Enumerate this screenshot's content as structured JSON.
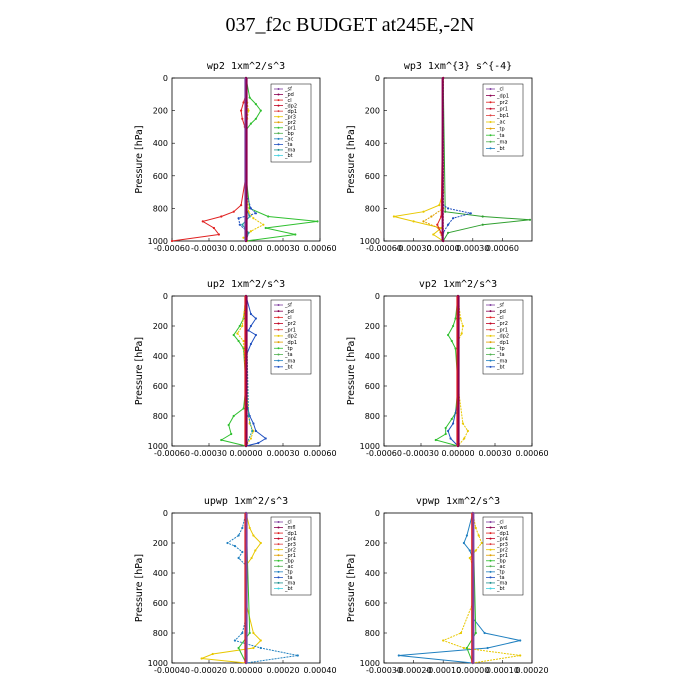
{
  "figure": {
    "title": "037_f2c  BUDGET at245E,-2N"
  },
  "chart_data": [
    {
      "type": "line",
      "title": "wp2   1xm^2/s^3",
      "ylabel": "Pressure  [hPa]",
      "ylim": [
        1000,
        0
      ],
      "yticks": [
        "0",
        "200",
        "400",
        "600",
        "800",
        "1000"
      ],
      "xlim": [
        -0.0006,
        0.0006
      ],
      "xticks": [
        "-0.00060",
        "-0.00030",
        "0.00000",
        "0.00030",
        "0.00060"
      ],
      "legend": [
        "_sf",
        "_pd",
        "_cl",
        "_dp2",
        "_dp1",
        "_pr3",
        "_pr2",
        "_pr1",
        "_bp",
        "_ac",
        "_ta",
        "_ma",
        "_bt"
      ],
      "series": [
        {
          "name": "_cl",
          "color": "#e02020",
          "p": [
            0,
            100,
            150,
            200,
            250,
            300,
            400,
            600,
            780,
            820,
            850,
            880,
            920,
            960,
            1000
          ],
          "x": [
            0,
            0,
            -2e-05,
            -4e-05,
            -3e-05,
            -1e-05,
            0,
            0,
            -4e-05,
            -0.0001,
            -0.0002,
            -0.00035,
            -0.00026,
            -0.00022,
            -0.0006
          ]
        },
        {
          "name": "_pr2",
          "color": "#e8c800",
          "p": [
            0,
            150,
            200,
            250,
            300,
            600,
            820,
            860,
            900,
            940,
            980,
            1000
          ],
          "x": [
            0,
            1e-05,
            2e-05,
            1e-05,
            0,
            0,
            2e-05,
            6e-05,
            0.00014,
            4e-05,
            -2e-05,
            1e-05
          ]
        },
        {
          "name": "_pr1",
          "color": "#30c030",
          "p": [
            0,
            120,
            160,
            200,
            250,
            280,
            320,
            600,
            800,
            850,
            880,
            920,
            960,
            1000
          ],
          "x": [
            0,
            3e-05,
            8e-05,
            0.00012,
            8e-05,
            4e-05,
            0,
            0,
            3e-05,
            0.00018,
            0.00058,
            0.00016,
            0.0004,
            0
          ]
        },
        {
          "name": "_bp",
          "color": "#2050c0",
          "p": [
            0,
            700,
            800,
            830,
            860,
            900,
            950,
            1000
          ],
          "x": [
            0,
            0,
            4e-05,
            8e-05,
            -6e-05,
            -5e-05,
            2e-05,
            0
          ]
        },
        {
          "name": "_ac",
          "color": "#20a0a0",
          "p": [
            0,
            800,
            850,
            900,
            950,
            1000
          ],
          "x": [
            0,
            0,
            3e-05,
            -3e-05,
            2e-05,
            0
          ]
        },
        {
          "name": "_sf",
          "color": "#8040a0",
          "p": [
            0,
            1000
          ],
          "x": [
            0,
            0
          ]
        },
        {
          "name": "_pd",
          "color": "#8b0050",
          "p": [
            0,
            1000
          ],
          "x": [
            0,
            0
          ]
        }
      ]
    },
    {
      "type": "line",
      "title": "wp3   1xm^{3} s^{-4}",
      "ylabel": "Pressure  [hPa]",
      "ylim": [
        1000,
        0
      ],
      "yticks": [
        "0",
        "200",
        "400",
        "600",
        "800",
        "1000"
      ],
      "xlim": [
        -0.0006,
        0.0009
      ],
      "xticks": [
        "-0.00060",
        "-0.00030",
        "0.00000",
        "0.00030",
        "0.00060"
      ],
      "legend": [
        "_cl",
        "_dp1",
        "_pr2",
        "_pr1",
        "_bp1",
        "_ac",
        "_tp",
        "_ta",
        "_ma",
        "_bt"
      ],
      "series": [
        {
          "name": "_pr2",
          "color": "#e8c800",
          "p": [
            0,
            700,
            780,
            820,
            850,
            880,
            920,
            960,
            1000
          ],
          "x": [
            0,
            0,
            -4e-05,
            -0.0002,
            -0.0005,
            -0.0003,
            -2e-05,
            -0.0001,
            0
          ]
        },
        {
          "name": "_pr1",
          "color": "#e0a000",
          "p": [
            0,
            800,
            850,
            880,
            920,
            1000
          ],
          "x": [
            0,
            0,
            -0.00012,
            -0.0002,
            -5e-05,
            0
          ]
        },
        {
          "name": "_ac",
          "color": "#30a030",
          "p": [
            0,
            820,
            850,
            870,
            900,
            950,
            1000
          ],
          "x": [
            0,
            2e-05,
            0.0004,
            0.00088,
            0.0004,
            5e-05,
            0
          ]
        },
        {
          "name": "_tp",
          "color": "#2050c0",
          "p": [
            0,
            780,
            800,
            830,
            860,
            900,
            950,
            1000
          ],
          "x": [
            0,
            0,
            5e-05,
            0.00028,
            0.0001,
            5e-05,
            0,
            0
          ]
        },
        {
          "name": "_cl",
          "color": "#e02020",
          "p": [
            0,
            850,
            900,
            950,
            1000
          ],
          "x": [
            0,
            -2e-05,
            -6e-05,
            -2e-05,
            0
          ]
        },
        {
          "name": "_dp1",
          "color": "#8b0050",
          "p": [
            0,
            1000
          ],
          "x": [
            0,
            0
          ]
        }
      ]
    },
    {
      "type": "line",
      "title": "up2   1xm^2/s^3",
      "ylabel": "Pressure  [hPa]",
      "ylim": [
        1000,
        0
      ],
      "yticks": [
        "0",
        "200",
        "400",
        "600",
        "800",
        "1000"
      ],
      "xlim": [
        -0.0006,
        0.0006
      ],
      "xticks": [
        "-0.00060",
        "-0.00030",
        "0.00000",
        "0.00030",
        "0.00060"
      ],
      "legend": [
        "_sf",
        "_pd",
        "_cl",
        "_pr2",
        "_pr1",
        "_dp2",
        "_dp1",
        "_tp",
        "_ta",
        "_ma",
        "_bt"
      ],
      "series": [
        {
          "name": "_pr1",
          "color": "#30c030",
          "p": [
            0,
            150,
            200,
            260,
            300,
            350,
            600,
            750,
            800,
            860,
            920,
            960,
            1000
          ],
          "x": [
            0,
            -2e-05,
            -5e-05,
            -0.0001,
            -6e-05,
            -2e-05,
            0,
            -2e-05,
            -0.0001,
            -0.00014,
            -0.00012,
            -0.0002,
            0
          ]
        },
        {
          "name": "_pr2",
          "color": "#e8c800",
          "p": [
            0,
            200,
            250,
            300,
            600,
            850,
            900,
            950,
            1000
          ],
          "x": [
            0,
            -3e-05,
            -7e-05,
            -2e-05,
            0,
            3e-05,
            6e-05,
            4e-05,
            0
          ]
        },
        {
          "name": "_tp",
          "color": "#2050c0",
          "p": [
            0,
            120,
            150,
            200,
            230,
            260,
            320,
            400,
            700,
            800,
            850,
            900,
            950,
            980,
            1000
          ],
          "x": [
            0,
            4e-05,
            8e-05,
            4e-05,
            2e-05,
            8e-05,
            4e-05,
            0,
            0,
            3e-05,
            6e-05,
            8e-05,
            0.00016,
            0.0001,
            0
          ]
        },
        {
          "name": "_ta",
          "color": "#20a0a0",
          "p": [
            0,
            800,
            900,
            1000
          ],
          "x": [
            0,
            2e-05,
            5e-05,
            0
          ]
        },
        {
          "name": "_cl",
          "color": "#e02020",
          "p": [
            0,
            1000
          ],
          "x": [
            0,
            0
          ]
        },
        {
          "name": "_pd",
          "color": "#8b0050",
          "p": [
            0,
            1000
          ],
          "x": [
            0,
            0
          ]
        }
      ]
    },
    {
      "type": "line",
      "title": "vp2   1xm^2/s^3",
      "ylabel": "Pressure  [hPa]",
      "ylim": [
        1000,
        0
      ],
      "yticks": [
        "0",
        "200",
        "400",
        "600",
        "800",
        "1000"
      ],
      "xlim": [
        -0.0006,
        0.0006
      ],
      "xticks": [
        "-0.00060",
        "-0.00030",
        "0.00000",
        "0.00030",
        "0.00060"
      ],
      "legend": [
        "_sf",
        "_pd",
        "_cl",
        "_pr2",
        "_pr1",
        "_dp2",
        "_dp1",
        "_tp",
        "_ta",
        "_ma",
        "_bt"
      ],
      "series": [
        {
          "name": "_pr1",
          "color": "#30c030",
          "p": [
            0,
            150,
            200,
            260,
            300,
            350,
            600,
            780,
            820,
            880,
            920,
            960,
            1000
          ],
          "x": [
            0,
            -2e-05,
            -4e-05,
            -8e-05,
            -5e-05,
            -2e-05,
            0,
            -2e-05,
            -5e-05,
            -0.0001,
            -0.0001,
            -0.00018,
            0
          ]
        },
        {
          "name": "_pr2",
          "color": "#e8c800",
          "p": [
            0,
            150,
            200,
            250,
            300,
            600,
            850,
            900,
            950,
            1000
          ],
          "x": [
            0,
            2e-05,
            4e-05,
            3e-05,
            0,
            0,
            4e-05,
            8e-05,
            5e-05,
            0
          ]
        },
        {
          "name": "_tp",
          "color": "#2050c0",
          "p": [
            0,
            700,
            850,
            900,
            950,
            1000
          ],
          "x": [
            0,
            0,
            -4e-05,
            -8e-05,
            -6e-05,
            0
          ]
        },
        {
          "name": "_cl",
          "color": "#e02020",
          "p": [
            0,
            1000
          ],
          "x": [
            0,
            0
          ]
        },
        {
          "name": "_pd",
          "color": "#8b0050",
          "p": [
            0,
            1000
          ],
          "x": [
            0,
            0
          ]
        }
      ]
    },
    {
      "type": "line",
      "title": "upwp   1xm^2/s^3",
      "ylabel": "Pressure  [hPa]",
      "ylim": [
        1000,
        0
      ],
      "yticks": [
        "0",
        "200",
        "400",
        "600",
        "800",
        "1000"
      ],
      "xlim": [
        -0.0004,
        0.0004
      ],
      "xticks": [
        "-0.00040",
        "-0.00020",
        "0.00000",
        "0.00020",
        "0.00040"
      ],
      "legend": [
        "_cl",
        "_mfl",
        "_dp1",
        "_pr4",
        "_pr3",
        "_pr2",
        "_pr1",
        "_bp",
        "_ac",
        "_tp",
        "_ta",
        "_ma",
        "_bt"
      ],
      "series": [
        {
          "name": "_pr2",
          "color": "#e8c800",
          "p": [
            0,
            100,
            150,
            200,
            250,
            300,
            350,
            600,
            800,
            850,
            900,
            940,
            970,
            1000
          ],
          "x": [
            0,
            2e-05,
            4e-05,
            8e-05,
            5e-05,
            3e-05,
            0,
            0,
            4e-05,
            8e-05,
            4e-05,
            -0.00018,
            -0.00024,
            0
          ]
        },
        {
          "name": "_tp",
          "color": "#2080c0",
          "p": [
            0,
            100,
            150,
            200,
            220,
            260,
            300,
            350,
            700,
            800,
            850,
            900,
            950,
            1000
          ],
          "x": [
            0,
            -2e-05,
            -4e-05,
            -0.0001,
            -6e-05,
            -2e-05,
            -4e-05,
            0,
            0,
            -2e-05,
            -6e-05,
            8e-05,
            0.00028,
            0
          ]
        },
        {
          "name": "_pr1",
          "color": "#30c030",
          "p": [
            0,
            800,
            900,
            1000
          ],
          "x": [
            0,
            2e-05,
            -4e-05,
            0
          ]
        },
        {
          "name": "_cl",
          "color": "#e02020",
          "p": [
            0,
            1000
          ],
          "x": [
            0,
            0
          ]
        },
        {
          "name": "_mfl",
          "color": "#8040a0",
          "p": [
            0,
            1000
          ],
          "x": [
            0,
            0
          ]
        }
      ]
    },
    {
      "type": "line",
      "title": "vpwp   1xm^2/s^3",
      "ylabel": "Pressure  [hPa]",
      "ylim": [
        1000,
        0
      ],
      "yticks": [
        "0",
        "200",
        "400",
        "600",
        "800",
        "1000"
      ],
      "xlim": [
        -0.0003,
        0.0002
      ],
      "xticks": [
        "-0.00030",
        "-0.00020",
        "-0.00010",
        "0.00000",
        "0.00010",
        "0.00020"
      ],
      "legend": [
        "_cl",
        "_wd",
        "_dp1",
        "_pr4",
        "_pr3",
        "_pr2",
        "_pr1",
        "_bp",
        "_ac",
        "_tp",
        "_ta",
        "_ma",
        "_bt"
      ],
      "series": [
        {
          "name": "_tp",
          "color": "#2080c0",
          "p": [
            0,
            150,
            200,
            250,
            300,
            700,
            800,
            850,
            900,
            950,
            1000
          ],
          "x": [
            0,
            -2e-05,
            -3e-05,
            -1e-05,
            0,
            0,
            4e-05,
            0.00016,
            5e-05,
            -0.00025,
            0
          ]
        },
        {
          "name": "_pr2",
          "color": "#e8c800",
          "p": [
            0,
            100,
            150,
            200,
            250,
            300,
            350,
            600,
            800,
            850,
            900,
            950,
            1000
          ],
          "x": [
            0,
            1e-05,
            2e-05,
            3e-05,
            1e-05,
            -1e-05,
            0,
            0,
            -4e-05,
            -0.0001,
            -3e-05,
            0.00016,
            0
          ]
        },
        {
          "name": "_pr1",
          "color": "#30c030",
          "p": [
            0,
            800,
            900,
            1000
          ],
          "x": [
            0,
            1e-05,
            -2e-05,
            0
          ]
        },
        {
          "name": "_cl",
          "color": "#e02020",
          "p": [
            0,
            1000
          ],
          "x": [
            0,
            0
          ]
        },
        {
          "name": "_wd",
          "color": "#8040a0",
          "p": [
            0,
            1000
          ],
          "x": [
            0,
            0
          ]
        }
      ]
    }
  ]
}
